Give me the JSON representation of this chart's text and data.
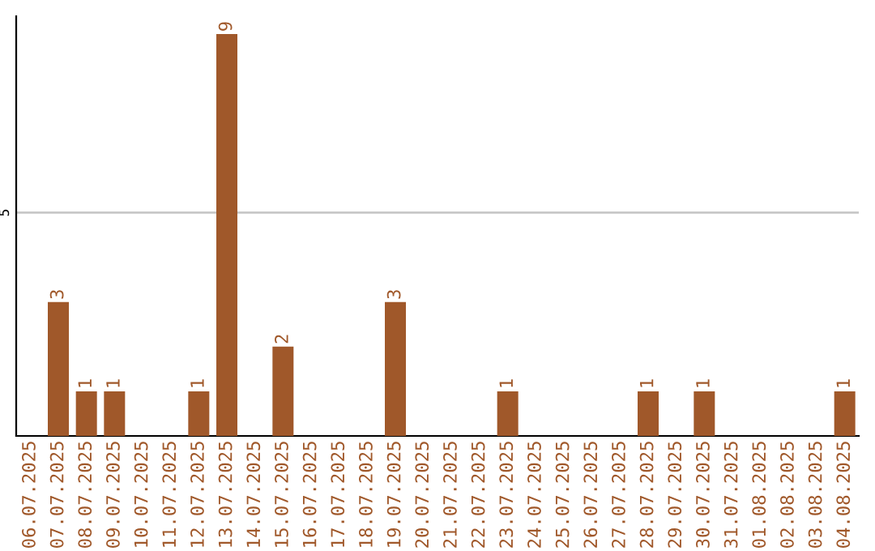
{
  "chart_data": {
    "type": "bar",
    "categories": [
      "06.07.2025",
      "07.07.2025",
      "08.07.2025",
      "09.07.2025",
      "10.07.2025",
      "11.07.2025",
      "12.07.2025",
      "13.07.2025",
      "14.07.2025",
      "15.07.2025",
      "16.07.2025",
      "17.07.2025",
      "18.07.2025",
      "19.07.2025",
      "20.07.2025",
      "21.07.2025",
      "22.07.2025",
      "23.07.2025",
      "24.07.2025",
      "25.07.2025",
      "26.07.2025",
      "27.07.2025",
      "28.07.2025",
      "29.07.2025",
      "30.07.2025",
      "31.07.2025",
      "01.08.2025",
      "02.08.2025",
      "03.08.2025",
      "04.08.2025"
    ],
    "values": [
      0,
      3,
      1,
      1,
      0,
      0,
      1,
      9,
      0,
      2,
      0,
      0,
      0,
      3,
      0,
      0,
      0,
      1,
      0,
      0,
      0,
      0,
      1,
      0,
      1,
      0,
      0,
      0,
      0,
      1
    ],
    "value_labels": [
      null,
      "3",
      "1",
      "1",
      null,
      null,
      "1",
      "9",
      null,
      "2",
      null,
      null,
      null,
      "3",
      null,
      null,
      null,
      "1",
      null,
      null,
      null,
      null,
      "1",
      null,
      "1",
      null,
      null,
      null,
      null,
      "1"
    ],
    "color": "#a0582a",
    "ylim": [
      0,
      9.4
    ],
    "yticks": [
      5
    ],
    "grid": "y",
    "legend": false
  }
}
